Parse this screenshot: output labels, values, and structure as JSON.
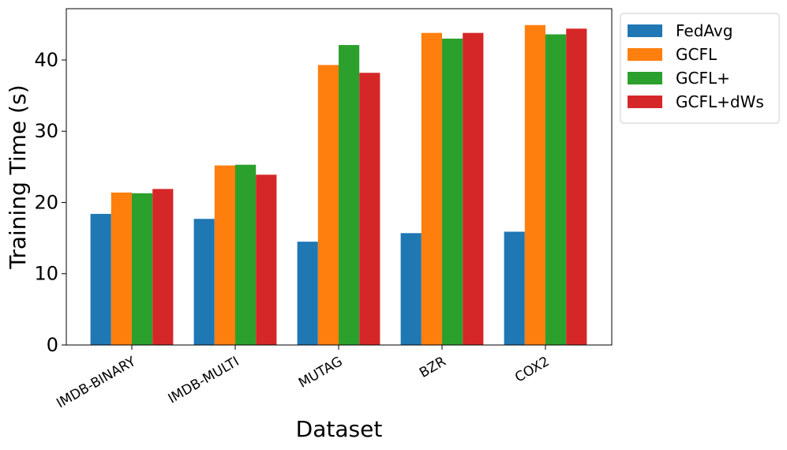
{
  "chart_data": {
    "type": "bar",
    "title": "",
    "xlabel": "Dataset",
    "ylabel": "Training Time (s)",
    "categories": [
      "IMDB-BINARY",
      "IMDB-MULTI",
      "MUTAG",
      "BZR",
      "COX2"
    ],
    "series": [
      {
        "name": "FedAvg",
        "color": "#1f77b4",
        "values": [
          18.4,
          17.7,
          14.5,
          15.7,
          15.9
        ]
      },
      {
        "name": "GCFL",
        "color": "#ff7f0e",
        "values": [
          21.4,
          25.2,
          39.3,
          43.8,
          44.9
        ]
      },
      {
        "name": "GCFL+",
        "color": "#2ca02c",
        "values": [
          21.3,
          25.3,
          42.1,
          43.0,
          43.6
        ]
      },
      {
        "name": "GCFL+dWs",
        "color": "#d62728",
        "values": [
          21.9,
          23.9,
          38.2,
          43.8,
          44.4
        ]
      }
    ],
    "ylim": [
      0,
      47.2
    ],
    "yticks": [
      0,
      10,
      20,
      30,
      40
    ],
    "x_tick_rotation": "30",
    "grid": false,
    "legend_position": "outside-top-right"
  }
}
